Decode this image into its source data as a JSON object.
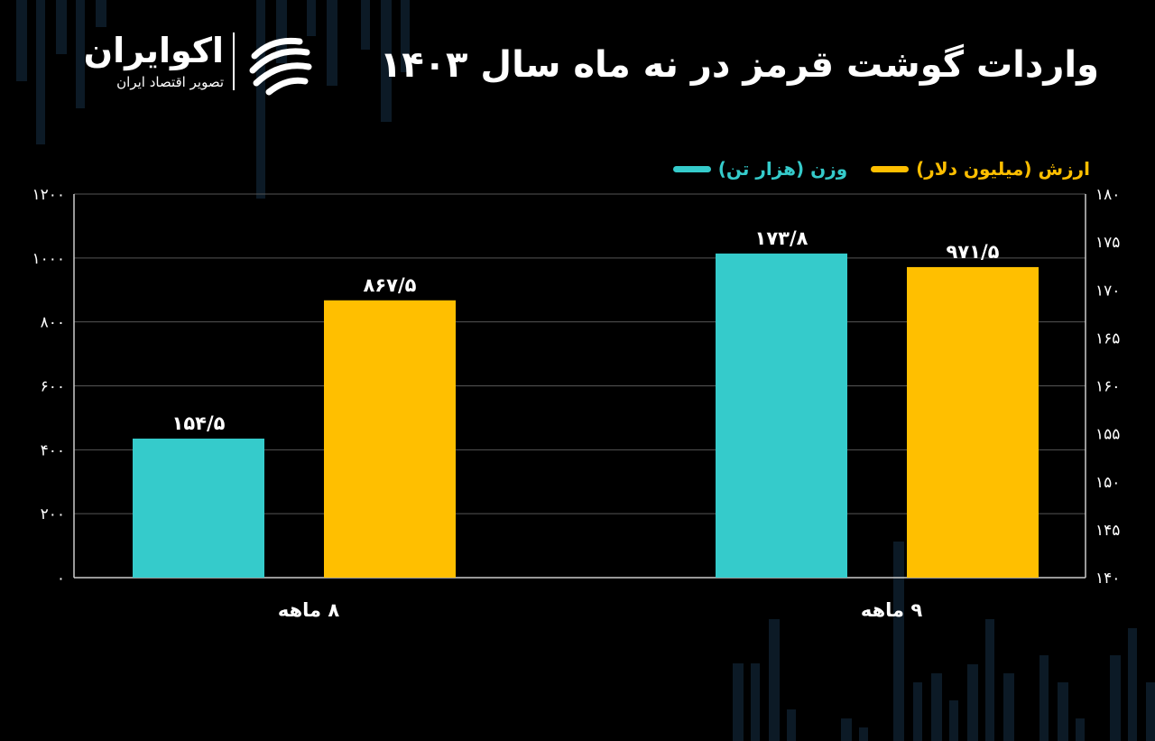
{
  "logo": {
    "name": "اکوایران",
    "tagline": "تصویر اقتصاد ایران"
  },
  "colors": {
    "background": "#000000",
    "series_weight": "#35cbcb",
    "series_value": "#ffbf00",
    "grid": "#555555",
    "axis": "#cccccc",
    "legend_value_text": "#ffbf00",
    "legend_weight_text": "#35cbcb",
    "decor": "#0c1a26"
  },
  "chart_data": {
    "type": "bar",
    "title": "واردات گوشت قرمز در نه ماه سال ۱۴۰۳",
    "categories": [
      "۸ ماهه",
      "۹ ماهه"
    ],
    "series": [
      {
        "name": "وزن (هزار تن)",
        "color": "#35cbcb",
        "axis": "right",
        "values": [
          154.5,
          173.8
        ],
        "labels": [
          "۱۵۴/۵",
          "۱۷۳/۸"
        ]
      },
      {
        "name": "ارزش (میلیون دلار)",
        "color": "#ffbf00",
        "axis": "left",
        "values": [
          867.5,
          971.5
        ],
        "labels": [
          "۸۶۷/۵",
          "۹۷۱/۵"
        ]
      }
    ],
    "y_left": {
      "lim": [
        0,
        1200
      ],
      "ticks": [
        0,
        200,
        400,
        600,
        800,
        1000,
        1200
      ],
      "tick_labels": [
        "۰",
        "۲۰۰",
        "۴۰۰",
        "۶۰۰",
        "۸۰۰",
        "۱۰۰۰",
        "۱۲۰۰"
      ]
    },
    "y_right": {
      "lim": [
        140,
        180
      ],
      "ticks": [
        140,
        145,
        150,
        155,
        160,
        165,
        170,
        175,
        180
      ],
      "tick_labels": [
        "۱۴۰",
        "۱۴۵",
        "۱۵۰",
        "۱۵۵",
        "۱۶۰",
        "۱۶۵",
        "۱۷۰",
        "۱۷۵",
        "۱۸۰"
      ]
    },
    "grid": true,
    "legend": "top-right"
  }
}
